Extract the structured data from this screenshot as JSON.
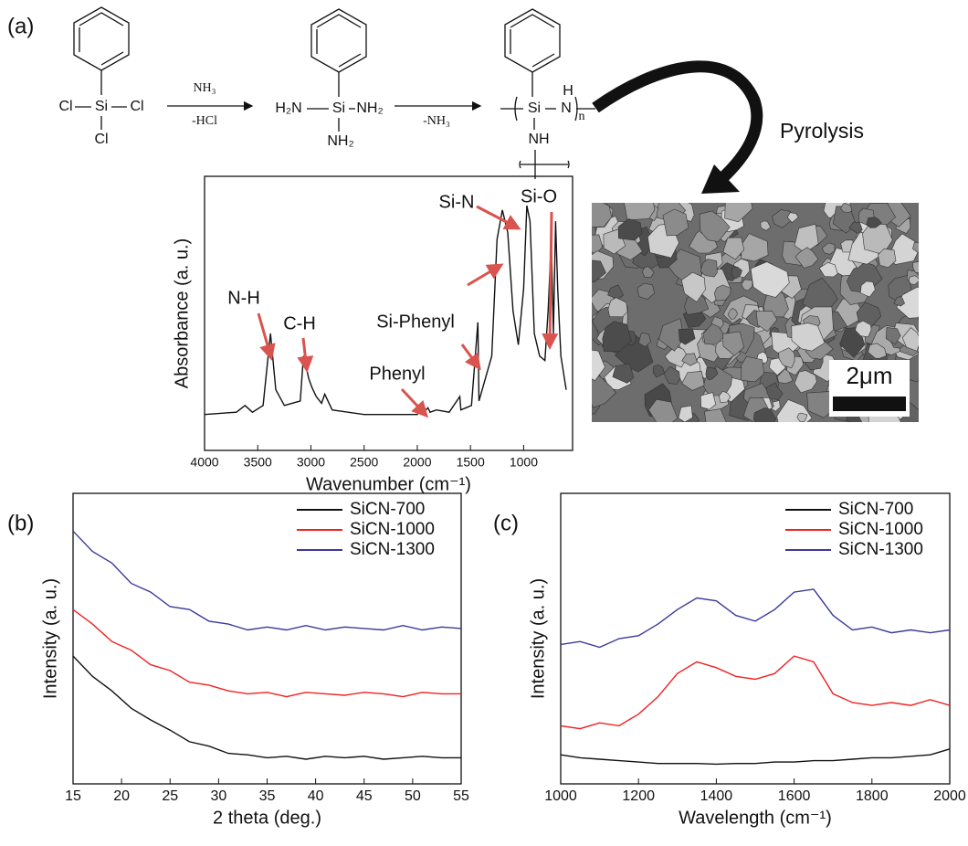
{
  "panel_labels": [
    "(a)",
    "(b)",
    "(c)"
  ],
  "scheme": {
    "reactant": [
      "Cl",
      "Si",
      "Cl",
      "Cl"
    ],
    "step1": [
      "NH₃",
      "-HCl"
    ],
    "intermediate": [
      "H₂N",
      "Si",
      "NH₂",
      "NH₂"
    ],
    "step2": [
      "-NH₃"
    ],
    "polymer": [
      "Si",
      "H",
      "N",
      "n",
      "NH"
    ],
    "process": "Pyrolysis"
  },
  "sem": {
    "scale_bar": "2μm"
  },
  "chart_data": [
    {
      "type": "line",
      "xlabel": "Wavenumber (cm⁻¹)",
      "ylabel": "Absorbance (a. u.)",
      "color": "#111111",
      "x": [
        4000,
        3700,
        3620,
        3550,
        3450,
        3380,
        3330,
        3250,
        3100,
        3070,
        3050,
        3020,
        2990,
        2950,
        2900,
        2870,
        2800,
        2500,
        2000,
        1960,
        1940,
        1900,
        1880,
        1820,
        1700,
        1600,
        1590,
        1490,
        1430,
        1420,
        1300,
        1250,
        1200,
        1150,
        1100,
        1050,
        1000,
        970,
        940,
        900,
        850,
        800,
        770,
        740,
        720,
        700,
        680,
        650,
        600
      ],
      "values": [
        0.04,
        0.05,
        0.08,
        0.05,
        0.08,
        0.4,
        0.15,
        0.08,
        0.1,
        0.3,
        0.26,
        0.2,
        0.16,
        0.12,
        0.09,
        0.13,
        0.06,
        0.04,
        0.04,
        0.07,
        0.05,
        0.07,
        0.05,
        0.06,
        0.05,
        0.12,
        0.06,
        0.08,
        0.45,
        0.1,
        0.3,
        0.82,
        0.95,
        0.85,
        0.5,
        0.35,
        0.6,
        0.97,
        0.9,
        0.4,
        0.3,
        0.28,
        0.5,
        0.82,
        0.4,
        0.9,
        0.6,
        0.3,
        0.15
      ],
      "xlim": [
        4000,
        540
      ],
      "ylim": [
        -0.12,
        1.1
      ],
      "xticks": [
        4000,
        3500,
        3000,
        2500,
        2000,
        1500,
        1000
      ],
      "annotations": [
        "N-H",
        "C-H",
        "Phenyl",
        "Si-Phenyl",
        "Si-N",
        "Si-O"
      ]
    },
    {
      "type": "line",
      "xlabel": "2 theta (deg.)",
      "ylabel": "Intensity (a. u.)",
      "x": [
        15,
        17,
        19,
        21,
        23,
        25,
        27,
        29,
        31,
        33,
        35,
        37,
        39,
        41,
        43,
        45,
        47,
        49,
        51,
        53,
        55
      ],
      "series": [
        {
          "name": "SiCN-700",
          "color": "#111111",
          "values": [
            0.44,
            0.37,
            0.32,
            0.26,
            0.22,
            0.185,
            0.145,
            0.13,
            0.105,
            0.1,
            0.09,
            0.095,
            0.085,
            0.095,
            0.09,
            0.095,
            0.085,
            0.09,
            0.095,
            0.09,
            0.09
          ]
        },
        {
          "name": "SiCN-1000",
          "color": "#ee2222",
          "values": [
            0.6,
            0.55,
            0.49,
            0.46,
            0.41,
            0.39,
            0.35,
            0.34,
            0.32,
            0.31,
            0.315,
            0.3,
            0.315,
            0.31,
            0.305,
            0.315,
            0.31,
            0.3,
            0.315,
            0.31,
            0.31
          ]
        },
        {
          "name": "SiCN-1300",
          "color": "#3a3a9a",
          "values": [
            0.87,
            0.8,
            0.76,
            0.69,
            0.66,
            0.61,
            0.6,
            0.56,
            0.55,
            0.53,
            0.54,
            0.53,
            0.545,
            0.53,
            0.54,
            0.535,
            0.53,
            0.545,
            0.53,
            0.54,
            0.535
          ]
        }
      ],
      "xlim": [
        15,
        55
      ],
      "ylim": [
        0,
        1
      ],
      "xticks": [
        15,
        20,
        25,
        30,
        35,
        40,
        45,
        50,
        55
      ]
    },
    {
      "type": "line",
      "xlabel": "Wavelength (cm⁻¹)",
      "ylabel": "Intensity (a. u.)",
      "x": [
        1000,
        1050,
        1100,
        1150,
        1200,
        1250,
        1300,
        1350,
        1400,
        1450,
        1500,
        1550,
        1600,
        1650,
        1700,
        1750,
        1800,
        1850,
        1900,
        1950,
        2000
      ],
      "series": [
        {
          "name": "SiCN-700",
          "color": "#111111",
          "values": [
            0.1,
            0.09,
            0.085,
            0.08,
            0.075,
            0.07,
            0.07,
            0.07,
            0.068,
            0.07,
            0.07,
            0.075,
            0.075,
            0.08,
            0.08,
            0.085,
            0.09,
            0.09,
            0.095,
            0.1,
            0.12
          ]
        },
        {
          "name": "SiCN-1000",
          "color": "#ee2222",
          "values": [
            0.2,
            0.19,
            0.21,
            0.2,
            0.24,
            0.3,
            0.38,
            0.42,
            0.4,
            0.37,
            0.36,
            0.38,
            0.44,
            0.42,
            0.31,
            0.28,
            0.27,
            0.28,
            0.27,
            0.29,
            0.27
          ]
        },
        {
          "name": "SiCN-1300",
          "color": "#3a3a9a",
          "values": [
            0.48,
            0.49,
            0.47,
            0.5,
            0.51,
            0.55,
            0.6,
            0.64,
            0.63,
            0.58,
            0.56,
            0.6,
            0.66,
            0.67,
            0.58,
            0.53,
            0.54,
            0.52,
            0.53,
            0.52,
            0.53
          ]
        }
      ],
      "xlim": [
        1000,
        2000
      ],
      "ylim": [
        0,
        1
      ],
      "xticks": [
        1000,
        1200,
        1400,
        1600,
        1800,
        2000
      ]
    }
  ]
}
